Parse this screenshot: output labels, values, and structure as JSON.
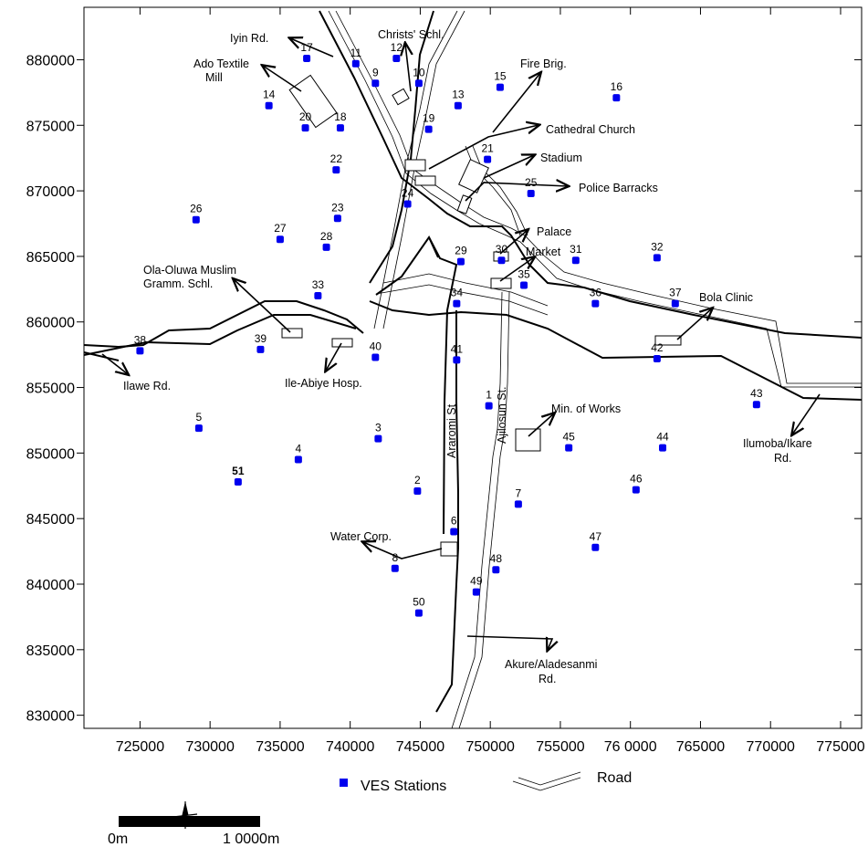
{
  "map": {
    "x_range": [
      721000,
      776500
    ],
    "y_range": [
      829000,
      884000
    ],
    "x_ticks": [
      725000,
      730000,
      735000,
      740000,
      745000,
      750000,
      755000,
      760000,
      765000,
      770000,
      775000
    ],
    "y_ticks": [
      830000,
      835000,
      840000,
      845000,
      850000,
      855000,
      860000,
      865000,
      870000,
      875000,
      880000
    ],
    "x_tick_labels": [
      "725000",
      "730000",
      "735000",
      "740000",
      "745000",
      "750000",
      "755000",
      "76 0000",
      "765000",
      "770000",
      "775000"
    ],
    "y_tick_labels": [
      "830000",
      "835000",
      "840000",
      "845000",
      "850000",
      "855000",
      "860000",
      "865000",
      "870000",
      "875000",
      "880000"
    ],
    "station_color": "#0000ee",
    "stations": [
      {
        "id": "1",
        "x": 749900,
        "y": 853600
      },
      {
        "id": "2",
        "x": 744800,
        "y": 847100
      },
      {
        "id": "3",
        "x": 742000,
        "y": 851100
      },
      {
        "id": "4",
        "x": 736300,
        "y": 849500
      },
      {
        "id": "5",
        "x": 729200,
        "y": 851900
      },
      {
        "id": "6",
        "x": 747400,
        "y": 844000
      },
      {
        "id": "7",
        "x": 752000,
        "y": 846100
      },
      {
        "id": "8",
        "x": 743200,
        "y": 841200
      },
      {
        "id": "9",
        "x": 741800,
        "y": 878200
      },
      {
        "id": "10",
        "x": 744900,
        "y": 878200
      },
      {
        "id": "11",
        "x": 740400,
        "y": 879700
      },
      {
        "id": "12",
        "x": 743300,
        "y": 880100
      },
      {
        "id": "13",
        "x": 747700,
        "y": 876500
      },
      {
        "id": "14",
        "x": 734200,
        "y": 876500
      },
      {
        "id": "15",
        "x": 750700,
        "y": 877900
      },
      {
        "id": "16",
        "x": 759000,
        "y": 877100
      },
      {
        "id": "17",
        "x": 736900,
        "y": 880100
      },
      {
        "id": "18",
        "x": 739300,
        "y": 874800
      },
      {
        "id": "19",
        "x": 745600,
        "y": 874700
      },
      {
        "id": "20",
        "x": 736800,
        "y": 874800
      },
      {
        "id": "21",
        "x": 749800,
        "y": 872400
      },
      {
        "id": "22",
        "x": 739000,
        "y": 871600
      },
      {
        "id": "23",
        "x": 739100,
        "y": 867900
      },
      {
        "id": "24",
        "x": 744100,
        "y": 869000
      },
      {
        "id": "25",
        "x": 752900,
        "y": 869800
      },
      {
        "id": "26",
        "x": 729000,
        "y": 867800
      },
      {
        "id": "27",
        "x": 735000,
        "y": 866300
      },
      {
        "id": "28",
        "x": 738300,
        "y": 865700
      },
      {
        "id": "29",
        "x": 747900,
        "y": 864600
      },
      {
        "id": "30",
        "x": 750800,
        "y": 864700
      },
      {
        "id": "31",
        "x": 756100,
        "y": 864700
      },
      {
        "id": "32",
        "x": 761900,
        "y": 864900
      },
      {
        "id": "33",
        "x": 737700,
        "y": 862000
      },
      {
        "id": "34",
        "x": 747600,
        "y": 861400
      },
      {
        "id": "35",
        "x": 752400,
        "y": 862800
      },
      {
        "id": "36",
        "x": 757500,
        "y": 861400
      },
      {
        "id": "37",
        "x": 763200,
        "y": 861400
      },
      {
        "id": "38",
        "x": 725000,
        "y": 857800
      },
      {
        "id": "39",
        "x": 733600,
        "y": 857900
      },
      {
        "id": "40",
        "x": 741800,
        "y": 857300
      },
      {
        "id": "41",
        "x": 747600,
        "y": 857100
      },
      {
        "id": "42",
        "x": 761900,
        "y": 857200
      },
      {
        "id": "43",
        "x": 769000,
        "y": 853700
      },
      {
        "id": "44",
        "x": 762300,
        "y": 850400
      },
      {
        "id": "45",
        "x": 755600,
        "y": 850400
      },
      {
        "id": "46",
        "x": 760400,
        "y": 847200
      },
      {
        "id": "47",
        "x": 757500,
        "y": 842800
      },
      {
        "id": "48",
        "x": 750400,
        "y": 841100
      },
      {
        "id": "49",
        "x": 749000,
        "y": 839400
      },
      {
        "id": "50",
        "x": 744900,
        "y": 837800
      },
      {
        "id": "51",
        "x": 732000,
        "y": 847800
      }
    ],
    "places": {
      "iyin": "Iyin Rd.",
      "textile_1": "Ado Textile",
      "textile_2": "Mill",
      "christ": "Christs' Schl.",
      "fire": "Fire Brig.",
      "cathedral": "Cathedral Church",
      "stadium": "Stadium",
      "police": "Police Barracks",
      "palace": "Palace",
      "market": "Market",
      "olaoluwa_1": "Ola-Oluwa Muslim",
      "olaoluwa_2": "Gramm. Schl.",
      "bola": "Bola Clinic",
      "ilawe": "Ilawe Rd.",
      "ileabiye": "Ile-Abiye Hosp.",
      "works": "Min. of Works",
      "ilumoba_1": "Ilumoba/Ikare",
      "ilumoba_2": "Rd.",
      "water": "Water Corp.",
      "akure_1": "Akure/Aladesanmi",
      "akure_2": "Rd.",
      "araromi": "Araromi St",
      "ajilosun": "Ajilosun St."
    }
  },
  "legend": {
    "stations_label": "VES Stations",
    "road_label": "Road"
  },
  "scale_bar": {
    "start_label": "0m",
    "end_label": "1 0000m"
  }
}
